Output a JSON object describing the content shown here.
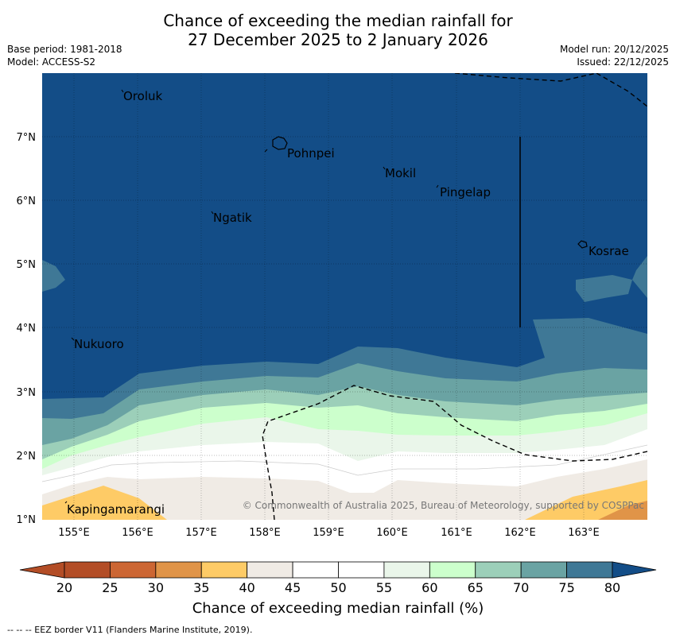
{
  "title_line1": "Chance of exceeding the median rainfall for",
  "title_line2": "27 December 2025 to 2 January 2026",
  "base_period": "Base period: 1981-2018",
  "model": "Model: ACCESS-S2",
  "model_run": "Model run: 20/12/2025",
  "issued": "Issued: 22/12/2025",
  "copyright": "© Commonwealth of Australia 2025, Bureau of Meteorology, supported by COSPPac",
  "lat_ticks": [
    "7°N",
    "6°N",
    "5°N",
    "4°N",
    "3°N",
    "2°N",
    "1°N"
  ],
  "lon_ticks": [
    "155°E",
    "156°E",
    "157°E",
    "158°E",
    "159°E",
    "160°E",
    "161°E",
    "162°E",
    "163°E"
  ],
  "places": [
    {
      "name": "Oroluk"
    },
    {
      "name": "Pohnpei"
    },
    {
      "name": "Mokil"
    },
    {
      "name": "Pingelap"
    },
    {
      "name": "Ngatik"
    },
    {
      "name": "Kosrae"
    },
    {
      "name": "Nukuoro"
    },
    {
      "name": "Kapingamarangi"
    }
  ],
  "colorbar": {
    "ticks": [
      "20",
      "25",
      "30",
      "35",
      "40",
      "45",
      "50",
      "55",
      "60",
      "65",
      "70",
      "75",
      "80"
    ],
    "colors": [
      "#b34d26",
      "#cc6633",
      "#e09448",
      "#fecb66",
      "#f0ebe5",
      "#ffffff",
      "#ffffff",
      "#eaf6ea",
      "#ccffcc",
      "#9ccfb9",
      "#6aa3a3",
      "#3f7896",
      "#134d87"
    ],
    "label": "Chance of exceeding median rainfall (%)"
  },
  "footnote": "--  --  -- EEZ border V11 (Flanders Marine Institute, 2019)."
}
